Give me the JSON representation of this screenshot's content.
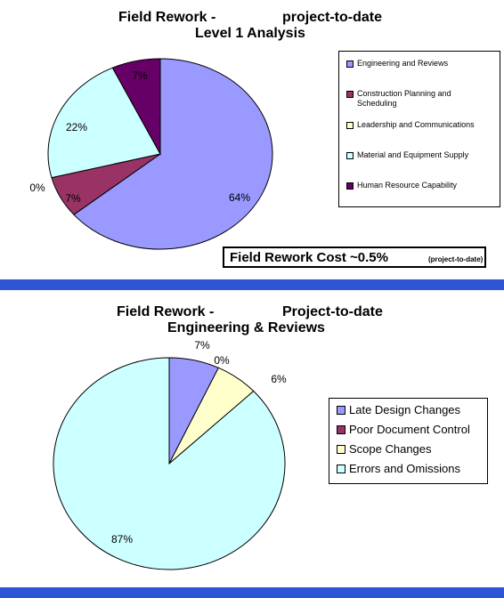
{
  "chart_data": [
    {
      "type": "pie",
      "title_line1_left": "Field Rework -",
      "title_line1_right": "project-to-date",
      "title_line2": "Level 1 Analysis",
      "legend_position": "right",
      "slices": [
        {
          "name": "Engineering and Reviews",
          "value": 64,
          "label": "64%",
          "color": "#9999ff"
        },
        {
          "name": "Construction Planning and Scheduling",
          "value": 7,
          "label": "7%",
          "color": "#993366"
        },
        {
          "name": "Leadership and Communications",
          "value": 0,
          "label": "0%",
          "color": "#ffffcc"
        },
        {
          "name": "Material and Equipment Supply",
          "value": 22,
          "label": "22%",
          "color": "#ccffff"
        },
        {
          "name": "Human Resource Capability",
          "value": 7,
          "label": "7%",
          "color": "#660066"
        }
      ],
      "legend_items": [
        "Engineering and Reviews",
        "Construction Planning and\nScheduling",
        "Leadership and Communications",
        "Material and Equipment Supply",
        "Human Resource Capability"
      ],
      "annotation_main": "Field Rework Cost ~0.5%",
      "annotation_note": "(project-to-date)"
    },
    {
      "type": "pie",
      "title_line1_left": "Field Rework -",
      "title_line1_right": "Project-to-date",
      "title_line2": "Engineering & Reviews",
      "legend_position": "right",
      "slices": [
        {
          "name": "Late Design Changes",
          "value": 7,
          "label": "7%",
          "color": "#9999ff"
        },
        {
          "name": "Poor Document Control",
          "value": 0,
          "label": "0%",
          "color": "#993366"
        },
        {
          "name": "Scope Changes",
          "value": 6,
          "label": "6%",
          "color": "#ffffcc"
        },
        {
          "name": "Errors and Omissions",
          "value": 87,
          "label": "87%",
          "color": "#ccffff"
        }
      ],
      "legend_items": [
        "Late Design Changes",
        "Poor Document Control",
        "Scope Changes",
        "Errors and Omissions"
      ]
    }
  ]
}
